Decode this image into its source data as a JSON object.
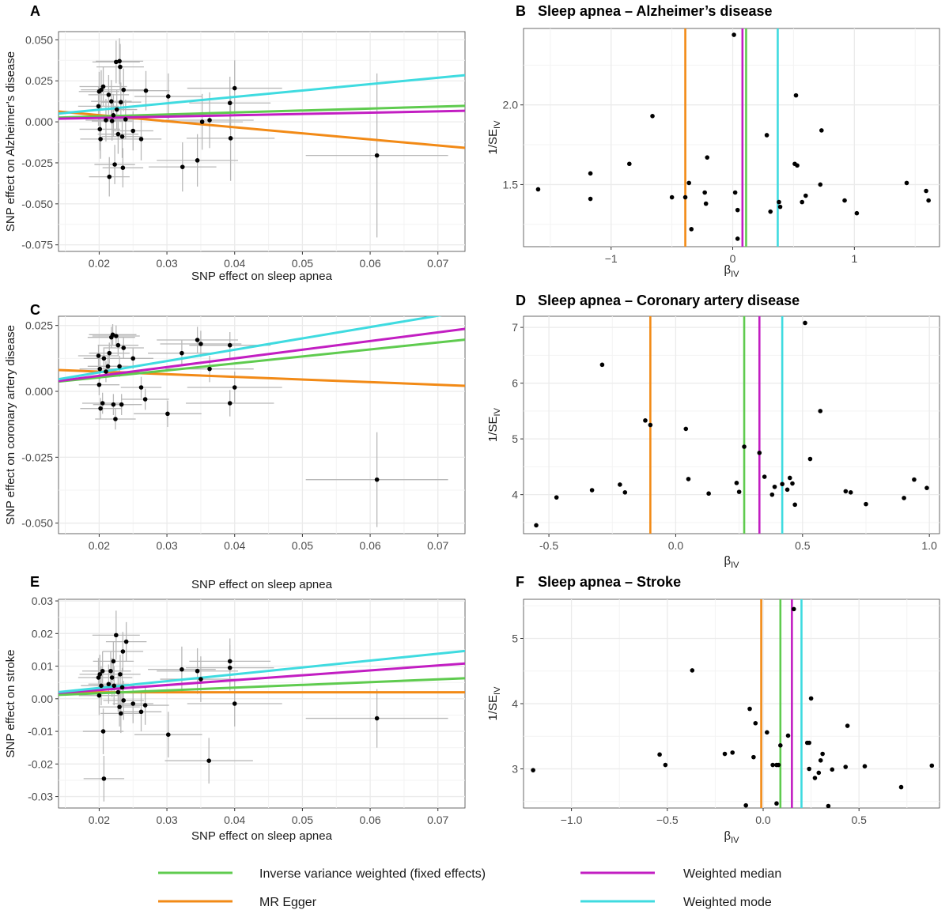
{
  "colors": {
    "ivw": "#5fcb4f",
    "egger": "#f28a16",
    "median": "#c21ec2",
    "mode": "#3fdbe0",
    "errorbar": "#b8b8b8",
    "grid": "#ebebeb"
  },
  "legend": [
    {
      "key": "ivw",
      "label": "Inverse variance weighted (fixed effects)"
    },
    {
      "key": "median",
      "label": "Weighted median"
    },
    {
      "key": "egger",
      "label": "MR Egger"
    },
    {
      "key": "mode",
      "label": "Weighted mode"
    }
  ],
  "chart_data": [
    {
      "id": "A",
      "letter": "A",
      "title": "",
      "type": "scatter",
      "xlabel": "SNP effect on sleep apnea",
      "ylabel": "SNP effect on Alzheimer's disease",
      "xlim": [
        0.014,
        0.074
      ],
      "ylim": [
        -0.079,
        0.055
      ],
      "xticks": [
        0.02,
        0.03,
        0.04,
        0.05,
        0.06,
        0.07
      ],
      "xticklabels": [
        "0.02",
        "0.03",
        "0.04",
        "0.05",
        "0.06",
        "0.07"
      ],
      "yticks": [
        -0.075,
        -0.05,
        -0.025,
        0.0,
        0.025,
        0.05
      ],
      "yticklabels": [
        "-0.075",
        "-0.050",
        "-0.025",
        "0.000",
        "0.025",
        "0.050"
      ],
      "lines": {
        "ivw": [
          0.0009,
          0.12
        ],
        "egger": [
          0.0115,
          -0.37
        ],
        "median": [
          0.0008,
          0.08
        ],
        "mode": [
          -0.0004,
          0.39
        ]
      },
      "points": [
        [
          0.0199,
          0.0095
        ],
        [
          0.02,
          0.0185
        ],
        [
          0.0201,
          -0.0045
        ],
        [
          0.0202,
          -0.0105
        ],
        [
          0.0203,
          0.0195
        ],
        [
          0.0206,
          0.0215
        ],
        [
          0.021,
          0.001
        ],
        [
          0.0214,
          0.0165
        ],
        [
          0.0215,
          -0.0335
        ],
        [
          0.0218,
          0.0125
        ],
        [
          0.0219,
          0.0005
        ],
        [
          0.0221,
          0.004
        ],
        [
          0.0223,
          -0.026
        ],
        [
          0.0225,
          0.0365
        ],
        [
          0.0226,
          0.0075
        ],
        [
          0.0228,
          -0.0075
        ],
        [
          0.023,
          0.037
        ],
        [
          0.0231,
          0.0335
        ],
        [
          0.0232,
          0.012
        ],
        [
          0.0234,
          -0.009
        ],
        [
          0.0235,
          -0.028
        ],
        [
          0.0236,
          0.0195
        ],
        [
          0.0239,
          0.0015
        ],
        [
          0.025,
          -0.0055
        ],
        [
          0.0262,
          -0.0105
        ],
        [
          0.0269,
          0.019
        ],
        [
          0.0302,
          0.0155
        ],
        [
          0.0323,
          -0.0275
        ],
        [
          0.0345,
          -0.0235
        ],
        [
          0.0352,
          0.0
        ],
        [
          0.0363,
          0.001
        ],
        [
          0.0393,
          0.0115
        ],
        [
          0.0394,
          -0.01
        ],
        [
          0.04,
          0.0205
        ],
        [
          0.061,
          -0.0205
        ]
      ],
      "xerr": [
        0.003,
        0.003,
        0.003,
        0.003,
        0.003,
        0.0035,
        0.003,
        0.003,
        0.003,
        0.003,
        0.003,
        0.0035,
        0.003,
        0.0035,
        0.003,
        0.003,
        0.0035,
        0.0035,
        0.003,
        0.003,
        0.003,
        0.003,
        0.003,
        0.003,
        0.003,
        0.0035,
        0.005,
        0.005,
        0.006,
        0.006,
        0.0065,
        0.006,
        0.0065,
        0.007,
        0.0105
      ],
      "yerr": [
        0.012,
        0.012,
        0.013,
        0.012,
        0.012,
        0.012,
        0.013,
        0.012,
        0.012,
        0.013,
        0.012,
        0.013,
        0.012,
        0.013,
        0.012,
        0.012,
        0.014,
        0.014,
        0.012,
        0.013,
        0.012,
        0.013,
        0.012,
        0.012,
        0.013,
        0.012,
        0.014,
        0.015,
        0.016,
        0.017,
        0.017,
        0.016,
        0.026,
        0.017,
        0.05
      ]
    },
    {
      "id": "B",
      "letter": "B",
      "title": "Sleep apnea – Alzheimer’s disease",
      "type": "scatter",
      "xlabel": "β",
      "xlabel_sub": "IV",
      "ylabel": "1/SE",
      "ylabel_sub": "IV",
      "xlim": [
        -1.72,
        1.7
      ],
      "ylim": [
        1.11,
        2.48
      ],
      "xticks": [
        -1,
        0,
        1
      ],
      "xticklabels": [
        "−1",
        "0",
        "1"
      ],
      "yticks": [
        1.5,
        2.0
      ],
      "yticklabels": [
        "1.5",
        "2.0"
      ],
      "vlines": {
        "egger": -0.39,
        "median": 0.08,
        "ivw": 0.11,
        "mode": 0.37
      },
      "points": [
        [
          -1.6,
          1.47
        ],
        [
          -1.17,
          1.57
        ],
        [
          -1.17,
          1.41
        ],
        [
          -0.85,
          1.63
        ],
        [
          -0.66,
          1.93
        ],
        [
          -0.5,
          1.42
        ],
        [
          -0.39,
          1.42
        ],
        [
          -0.36,
          1.51
        ],
        [
          -0.34,
          1.22
        ],
        [
          -0.23,
          1.45
        ],
        [
          -0.22,
          1.38
        ],
        [
          -0.21,
          1.67
        ],
        [
          0.01,
          2.44
        ],
        [
          0.02,
          1.45
        ],
        [
          0.04,
          1.34
        ],
        [
          0.04,
          1.16
        ],
        [
          0.28,
          1.81
        ],
        [
          0.31,
          1.33
        ],
        [
          0.38,
          1.39
        ],
        [
          0.39,
          1.36
        ],
        [
          0.51,
          1.63
        ],
        [
          0.52,
          2.06
        ],
        [
          0.53,
          1.62
        ],
        [
          0.57,
          1.39
        ],
        [
          0.6,
          1.43
        ],
        [
          0.72,
          1.5
        ],
        [
          0.73,
          1.84
        ],
        [
          0.92,
          1.4
        ],
        [
          1.02,
          1.32
        ],
        [
          1.43,
          1.51
        ],
        [
          1.59,
          1.46
        ],
        [
          1.61,
          1.4
        ]
      ]
    },
    {
      "id": "C",
      "letter": "C",
      "title": "",
      "type": "scatter",
      "xlabel": "SNP effect on sleep apnea",
      "ylabel": "SNP effect on coronary artery disease",
      "xlim": [
        0.014,
        0.074
      ],
      "ylim": [
        -0.054,
        0.0285
      ],
      "xticks": [
        0.02,
        0.03,
        0.04,
        0.05,
        0.06,
        0.07
      ],
      "xticklabels": [
        "0.02",
        "0.03",
        "0.04",
        "0.05",
        "0.06",
        "0.07"
      ],
      "yticks": [
        -0.05,
        -0.025,
        0.0,
        0.025
      ],
      "yticklabels": [
        "-0.050",
        "-0.025",
        "0.000",
        "0.025"
      ],
      "lines": {
        "ivw": [
          0.0,
          0.265
        ],
        "egger": [
          0.0095,
          -0.1
        ],
        "median": [
          -0.0007,
          0.33
        ],
        "mode": [
          -0.0014,
          0.43
        ]
      },
      "points": [
        [
          0.0199,
          0.0135
        ],
        [
          0.02,
          0.0025
        ],
        [
          0.0201,
          0.0085
        ],
        [
          0.0202,
          -0.0065
        ],
        [
          0.0205,
          -0.0045
        ],
        [
          0.0207,
          0.0125
        ],
        [
          0.021,
          0.0075
        ],
        [
          0.0213,
          0.0095
        ],
        [
          0.0215,
          0.0145
        ],
        [
          0.0218,
          0.0205
        ],
        [
          0.022,
          0.0215
        ],
        [
          0.0221,
          -0.005
        ],
        [
          0.0224,
          -0.0105
        ],
        [
          0.0225,
          0.021
        ],
        [
          0.0228,
          0.0175
        ],
        [
          0.023,
          0.0095
        ],
        [
          0.0233,
          -0.005
        ],
        [
          0.0236,
          0.0165
        ],
        [
          0.025,
          0.0125
        ],
        [
          0.0262,
          0.0015
        ],
        [
          0.0268,
          -0.003
        ],
        [
          0.0301,
          -0.0085
        ],
        [
          0.0322,
          0.0145
        ],
        [
          0.0345,
          0.0195
        ],
        [
          0.035,
          0.018
        ],
        [
          0.0363,
          0.0085
        ],
        [
          0.0393,
          0.0175
        ],
        [
          0.0393,
          -0.0045
        ],
        [
          0.04,
          0.0015
        ],
        [
          0.061,
          -0.0335
        ]
      ],
      "xerr": [
        0.003,
        0.003,
        0.003,
        0.003,
        0.003,
        0.003,
        0.003,
        0.003,
        0.003,
        0.0035,
        0.0035,
        0.003,
        0.003,
        0.0035,
        0.003,
        0.003,
        0.003,
        0.003,
        0.003,
        0.003,
        0.0035,
        0.005,
        0.005,
        0.006,
        0.006,
        0.0065,
        0.006,
        0.0065,
        0.007,
        0.0105
      ],
      "yerr": [
        0.004,
        0.004,
        0.004,
        0.004,
        0.004,
        0.004,
        0.004,
        0.004,
        0.004,
        0.004,
        0.004,
        0.004,
        0.004,
        0.004,
        0.004,
        0.004,
        0.004,
        0.004,
        0.004,
        0.004,
        0.004,
        0.005,
        0.005,
        0.005,
        0.005,
        0.005,
        0.005,
        0.005,
        0.006,
        0.018
      ]
    },
    {
      "id": "D",
      "letter": "D",
      "title": "Sleep apnea – Coronary artery disease",
      "type": "scatter",
      "xlabel": "β",
      "xlabel_sub": "IV",
      "ylabel": "1/SE",
      "ylabel_sub": "IV",
      "xlim": [
        -0.6,
        1.04
      ],
      "ylim": [
        3.3,
        7.2
      ],
      "xticks": [
        -0.5,
        0.0,
        0.5,
        1.0
      ],
      "xticklabels": [
        "-0.5",
        "0.0",
        "0.5",
        "1.0"
      ],
      "yticks": [
        4,
        5,
        6,
        7
      ],
      "yticklabels": [
        "4",
        "5",
        "6",
        "7"
      ],
      "vlines": {
        "egger": -0.1,
        "ivw": 0.27,
        "median": 0.33,
        "mode": 0.42
      },
      "points": [
        [
          -0.55,
          3.45
        ],
        [
          -0.47,
          3.95
        ],
        [
          -0.33,
          4.08
        ],
        [
          -0.29,
          6.33
        ],
        [
          -0.22,
          4.18
        ],
        [
          -0.2,
          4.04
        ],
        [
          -0.12,
          5.33
        ],
        [
          -0.1,
          5.25
        ],
        [
          0.04,
          5.18
        ],
        [
          0.05,
          4.28
        ],
        [
          0.13,
          4.02
        ],
        [
          0.24,
          4.21
        ],
        [
          0.25,
          4.05
        ],
        [
          0.27,
          4.86
        ],
        [
          0.33,
          4.75
        ],
        [
          0.35,
          4.32
        ],
        [
          0.38,
          4.0
        ],
        [
          0.39,
          4.14
        ],
        [
          0.42,
          4.19
        ],
        [
          0.44,
          4.09
        ],
        [
          0.45,
          4.3
        ],
        [
          0.46,
          4.2
        ],
        [
          0.47,
          3.82
        ],
        [
          0.51,
          7.08
        ],
        [
          0.53,
          4.64
        ],
        [
          0.57,
          5.5
        ],
        [
          0.67,
          4.06
        ],
        [
          0.69,
          4.04
        ],
        [
          0.75,
          3.83
        ],
        [
          0.9,
          3.94
        ],
        [
          0.94,
          4.27
        ],
        [
          0.99,
          4.12
        ]
      ]
    },
    {
      "id": "E",
      "letter": "E",
      "title": "",
      "type": "scatter",
      "xlabel": "SNP effect on sleep apnea",
      "ylabel": "SNP effect on stroke",
      "xlim": [
        0.014,
        0.074
      ],
      "ylim": [
        -0.0335,
        0.0305
      ],
      "xticks": [
        0.02,
        0.03,
        0.04,
        0.05,
        0.06,
        0.07
      ],
      "xticklabels": [
        "0.02",
        "0.03",
        "0.04",
        "0.05",
        "0.06",
        "0.07"
      ],
      "yticks": [
        -0.03,
        -0.02,
        -0.01,
        0.0,
        0.01,
        0.02,
        0.03
      ],
      "yticklabels": [
        "-0.03",
        "-0.02",
        "-0.01",
        "0.00",
        "0.01",
        "0.02",
        "0.03"
      ],
      "lines": {
        "ivw": [
          0.0,
          0.085
        ],
        "egger": [
          0.002,
          0.0
        ],
        "median": [
          -0.0003,
          0.15
        ],
        "mode": [
          -0.0009,
          0.21
        ]
      },
      "points": [
        [
          0.0199,
          0.0065
        ],
        [
          0.02,
          0.001
        ],
        [
          0.0201,
          0.0075
        ],
        [
          0.0203,
          0.004
        ],
        [
          0.0205,
          0.0085
        ],
        [
          0.0206,
          -0.01
        ],
        [
          0.0207,
          -0.0245
        ],
        [
          0.0214,
          0.0045
        ],
        [
          0.0217,
          0.0085
        ],
        [
          0.0219,
          0.0065
        ],
        [
          0.0221,
          0.0115
        ],
        [
          0.0222,
          0.004
        ],
        [
          0.0225,
          0.0195
        ],
        [
          0.0228,
          0.002
        ],
        [
          0.023,
          -0.0025
        ],
        [
          0.0231,
          0.0075
        ],
        [
          0.0232,
          -0.0045
        ],
        [
          0.0234,
          0.0035
        ],
        [
          0.0235,
          0.0145
        ],
        [
          0.0236,
          -0.0005
        ],
        [
          0.024,
          0.0175
        ],
        [
          0.025,
          -0.0015
        ],
        [
          0.0262,
          -0.004
        ],
        [
          0.0268,
          -0.002
        ],
        [
          0.0302,
          -0.011
        ],
        [
          0.0322,
          0.009
        ],
        [
          0.0345,
          0.0085
        ],
        [
          0.035,
          0.006
        ],
        [
          0.0362,
          -0.019
        ],
        [
          0.0393,
          0.0115
        ],
        [
          0.0393,
          0.0095
        ],
        [
          0.04,
          -0.0015
        ],
        [
          0.061,
          -0.006
        ]
      ],
      "xerr": [
        0.003,
        0.003,
        0.003,
        0.003,
        0.003,
        0.003,
        0.003,
        0.003,
        0.003,
        0.003,
        0.003,
        0.003,
        0.0035,
        0.003,
        0.003,
        0.003,
        0.003,
        0.003,
        0.003,
        0.003,
        0.003,
        0.003,
        0.003,
        0.0035,
        0.005,
        0.005,
        0.006,
        0.006,
        0.0065,
        0.006,
        0.0065,
        0.007,
        0.0105
      ],
      "yerr": [
        0.006,
        0.006,
        0.006,
        0.006,
        0.006,
        0.007,
        0.007,
        0.006,
        0.006,
        0.006,
        0.006,
        0.006,
        0.0075,
        0.006,
        0.006,
        0.006,
        0.006,
        0.006,
        0.006,
        0.006,
        0.006,
        0.006,
        0.006,
        0.006,
        0.007,
        0.007,
        0.007,
        0.007,
        0.007,
        0.007,
        0.007,
        0.007,
        0.009
      ]
    },
    {
      "id": "F",
      "letter": "F",
      "title": "Sleep apnea – Stroke",
      "type": "scatter",
      "xlabel": "β",
      "xlabel_sub": "IV",
      "ylabel": "1/SE",
      "ylabel_sub": "IV",
      "xlim": [
        -1.25,
        0.92
      ],
      "ylim": [
        2.4,
        5.6
      ],
      "xticks": [
        -1.0,
        -0.5,
        0.0,
        0.5
      ],
      "xticklabels": [
        "−1.0",
        "−0.5",
        "0.0",
        "0.5"
      ],
      "yticks": [
        3,
        4,
        5
      ],
      "yticklabels": [
        "3",
        "4",
        "5"
      ],
      "vlines": {
        "egger": -0.01,
        "ivw": 0.09,
        "median": 0.15,
        "mode": 0.2
      },
      "points": [
        [
          -1.2,
          2.98
        ],
        [
          -0.54,
          3.22
        ],
        [
          -0.51,
          3.06
        ],
        [
          -0.37,
          4.51
        ],
        [
          -0.2,
          3.23
        ],
        [
          -0.16,
          3.25
        ],
        [
          -0.09,
          2.44
        ],
        [
          -0.07,
          3.92
        ],
        [
          -0.05,
          3.18
        ],
        [
          -0.04,
          3.7
        ],
        [
          0.02,
          3.56
        ],
        [
          0.05,
          3.06
        ],
        [
          0.07,
          3.06
        ],
        [
          0.07,
          2.47
        ],
        [
          0.08,
          3.06
        ],
        [
          0.09,
          3.36
        ],
        [
          0.13,
          3.51
        ],
        [
          0.16,
          5.45
        ],
        [
          0.23,
          3.4
        ],
        [
          0.24,
          3.4
        ],
        [
          0.24,
          3.0
        ],
        [
          0.25,
          4.08
        ],
        [
          0.27,
          2.86
        ],
        [
          0.29,
          2.94
        ],
        [
          0.3,
          3.13
        ],
        [
          0.31,
          3.23
        ],
        [
          0.34,
          2.43
        ],
        [
          0.36,
          2.99
        ],
        [
          0.43,
          3.03
        ],
        [
          0.44,
          3.66
        ],
        [
          0.53,
          3.04
        ],
        [
          0.72,
          2.72
        ],
        [
          0.88,
          3.05
        ]
      ]
    }
  ]
}
